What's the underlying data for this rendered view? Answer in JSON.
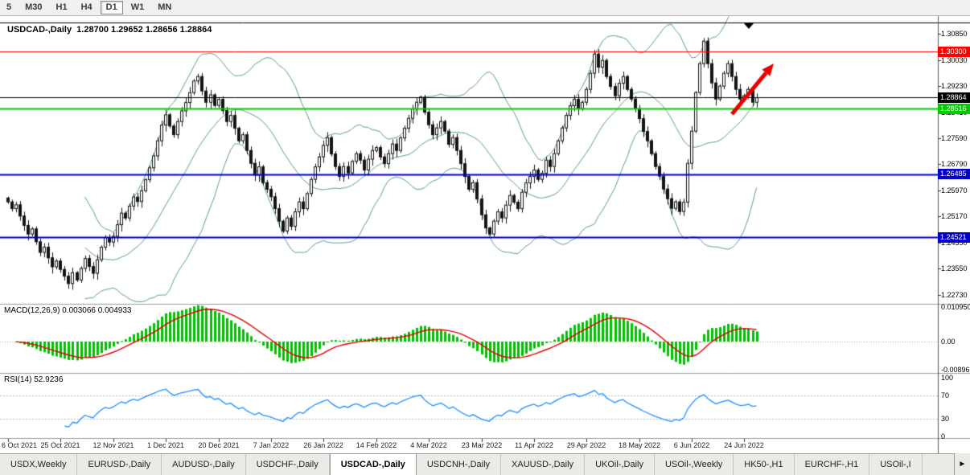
{
  "colors": {
    "candle": "#141414",
    "bull": "#ffffff",
    "band": "#5b9e95",
    "hist": "#00c000",
    "signal": "#e00000",
    "rsi": "#1e90ff",
    "arrow": "#e80000"
  },
  "toolbar": {
    "timeframes": [
      "5",
      "M30",
      "H1",
      "H4",
      "D1",
      "W1",
      "MN"
    ],
    "active": "D1"
  },
  "chart": {
    "title": "USDCAD-,Daily  1.28700 1.29652 1.28656 1.28864"
  },
  "macd_panel": {
    "label": "MACD(12,26,9) 0.003066 0.004933",
    "axis_labels": [
      "0.010950",
      "0.00",
      "-0.00896"
    ]
  },
  "rsi_panel": {
    "label": "RSI(14) 52.9236",
    "axis_labels": [
      "100",
      "70",
      "30",
      "0"
    ]
  },
  "tabbar": {
    "scroll_icon": "►",
    "active_tab": "USDCAD-,Daily",
    "tabs": [
      "USDX,Weekly",
      "EURUSD-,Daily",
      "AUDUSD-,Daily",
      "USDCHF-,Daily",
      "USDCAD-,Daily",
      "USDCNH-,Daily",
      "XAUUSD-,Daily",
      "UKOil-,Daily",
      "USOil-,Weekly",
      "HK50-,H1",
      "EURCHF-,H1",
      "USOil-,I"
    ]
  },
  "chart_data": {
    "type": "candlestick",
    "symbol": "USDCAD",
    "timeframe": "Daily",
    "ohlc_display": {
      "open": "1.28700",
      "high": "1.29652",
      "low": "1.28656",
      "close": "1.28864"
    },
    "x_labels": [
      "6 Oct 2021",
      "25 Oct 2021",
      "12 Nov 2021",
      "1 Dec 2021",
      "20 Dec 2021",
      "7 Jan 2022",
      "26 Jan 2022",
      "14 Feb 2022",
      "4 Mar 2022",
      "23 Mar 2022",
      "11 Apr 2022",
      "29 Apr 2022",
      "18 May 2022",
      "6 Jun 2022",
      "24 Jun 2022"
    ],
    "y_axis_labels": [
      "1.30850",
      "1.30030",
      "1.29230",
      "1.28410",
      "1.27590",
      "1.26790",
      "1.25970",
      "1.25170",
      "1.24350",
      "1.23550",
      "1.22730"
    ],
    "hlines": [
      {
        "label": "1.30300",
        "price": 1.303,
        "color": "#ff0000",
        "lw": 1,
        "role": "resistance-line"
      },
      {
        "label": "1.28864",
        "price": 1.28864,
        "color": "#000000",
        "lw": 1,
        "role": "current-price-line"
      },
      {
        "label": "1.28516",
        "price": 1.28516,
        "color": "#00cc00",
        "lw": 2,
        "role": "support-line-green"
      },
      {
        "label": "1.26485",
        "price": 1.26485,
        "color": "#0000c8",
        "lw": 2,
        "role": "support-line-blue-1"
      },
      {
        "label": "1.24521",
        "price": 1.24521,
        "color": "#0000c8",
        "lw": 2,
        "role": "support-line-blue-2"
      }
    ],
    "indicators": {
      "bollinger": [
        20,
        2
      ],
      "macd": [
        12,
        26,
        9
      ],
      "rsi": 14
    },
    "annotation": "red-up-arrow",
    "closes": [
      1.2562,
      1.2541,
      1.2553,
      1.2518,
      1.2489,
      1.2462,
      1.2478,
      1.2438,
      1.2405,
      1.2421,
      1.2388,
      1.236,
      1.2378,
      1.2352,
      1.2331,
      1.2308,
      1.2342,
      1.2319,
      1.2355,
      1.2386,
      1.2361,
      1.234,
      1.2382,
      1.2421,
      1.2451,
      1.2437,
      1.2455,
      1.2491,
      1.2527,
      1.2512,
      1.2549,
      1.2577,
      1.2563,
      1.2597,
      1.2631,
      1.2668,
      1.2705,
      1.2752,
      1.2801,
      1.2833,
      1.2798,
      1.2771,
      1.2812,
      1.2845,
      1.2871,
      1.2902,
      1.2938,
      1.2952,
      1.2907,
      1.2872,
      1.2895,
      1.2862,
      1.2881,
      1.2846,
      1.2812,
      1.2831,
      1.2791,
      1.2752,
      1.2771,
      1.2722,
      1.2682,
      1.2645,
      1.2671,
      1.2622,
      1.2601,
      1.2578,
      1.2541,
      1.2502,
      1.2471,
      1.2512,
      1.2486,
      1.2531,
      1.2562,
      1.2541,
      1.2588,
      1.2632,
      1.2671,
      1.2702,
      1.2738,
      1.2762,
      1.2711,
      1.2672,
      1.2641,
      1.2672,
      1.2652,
      1.2688,
      1.2712,
      1.2692,
      1.2661,
      1.2695,
      1.2722,
      1.2731,
      1.2702,
      1.2681,
      1.2712,
      1.2742,
      1.2722,
      1.2761,
      1.2791,
      1.2822,
      1.2851,
      1.2872,
      1.2888,
      1.2841,
      1.2802,
      1.2771,
      1.2792,
      1.2812,
      1.2782,
      1.2741,
      1.2762,
      1.2722,
      1.2681,
      1.2641,
      1.2601,
      1.2622,
      1.2571,
      1.2522,
      1.2481,
      1.2462,
      1.2502,
      1.2531,
      1.2512,
      1.2552,
      1.2582,
      1.2561,
      1.2541,
      1.2592,
      1.2621,
      1.2641,
      1.2661,
      1.2632,
      1.2651,
      1.2692,
      1.2672,
      1.2712,
      1.2752,
      1.2792,
      1.2831,
      1.2861,
      1.2881,
      1.2852,
      1.2872,
      1.2912,
      1.2962,
      1.3022,
      1.2981,
      1.3002,
      1.2952,
      1.2921,
      1.2892,
      1.2931,
      1.2952,
      1.2912,
      1.2882,
      1.2852,
      1.2821,
      1.2781,
      1.2752,
      1.2712,
      1.2672,
      1.2642,
      1.2602,
      1.2572,
      1.2542,
      1.2562,
      1.2532,
      1.2561,
      1.2682,
      1.2782,
      1.2902,
      1.2992,
      1.3062,
      1.2992,
      1.2932,
      1.2882,
      1.2922,
      1.2962,
      1.2992,
      1.2952,
      1.2912,
      1.2882,
      1.2892,
      1.2912,
      1.2872,
      1.2886
    ]
  }
}
